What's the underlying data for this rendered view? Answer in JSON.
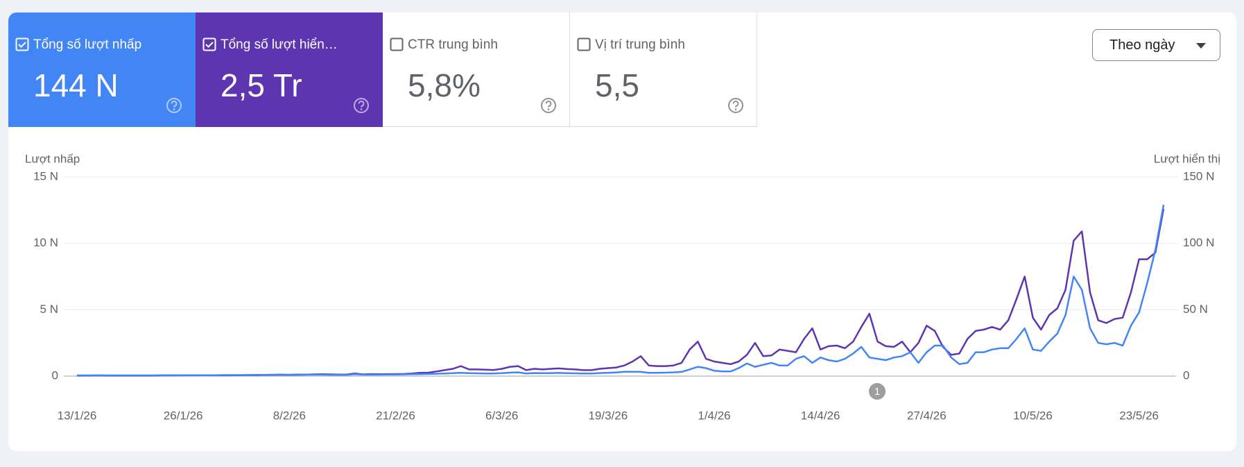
{
  "cards": [
    {
      "label": "Tổng số lượt nhấp",
      "value": "144 N",
      "checked": true,
      "color": "#4285f4"
    },
    {
      "label": "Tổng số lượt hiển…",
      "value": "2,5 Tr",
      "checked": true,
      "color": "#5e35b1"
    },
    {
      "label": "CTR trung bình",
      "value": "5,8%",
      "checked": false,
      "color": "#ffffff"
    },
    {
      "label": "Vị trí trung bình",
      "value": "5,5",
      "checked": false,
      "color": "#ffffff"
    }
  ],
  "period_select": "Theo ngày",
  "chart_data": {
    "type": "line",
    "y_label": "Lượt nhấp",
    "y2_label": "Lượt hiển thị",
    "annotation": "1",
    "grid": true,
    "categories": [
      "13/1/26",
      null,
      null,
      null,
      null,
      null,
      null,
      null,
      null,
      null,
      null,
      null,
      null,
      "26/1/26",
      null,
      null,
      null,
      null,
      null,
      null,
      null,
      null,
      null,
      null,
      null,
      null,
      "8/2/26",
      null,
      null,
      null,
      null,
      null,
      null,
      null,
      null,
      null,
      null,
      null,
      null,
      "21/2/26",
      null,
      null,
      null,
      null,
      null,
      null,
      null,
      null,
      null,
      null,
      null,
      null,
      "6/3/26",
      null,
      null,
      null,
      null,
      null,
      null,
      null,
      null,
      null,
      null,
      null,
      null,
      "19/3/26",
      null,
      null,
      null,
      null,
      null,
      null,
      null,
      null,
      null,
      null,
      null,
      null,
      "1/4/26",
      null,
      null,
      null,
      null,
      null,
      null,
      null,
      null,
      null,
      null,
      null,
      null,
      "14/4/26",
      null,
      null,
      null,
      null,
      null,
      null,
      null,
      null,
      null,
      null,
      null,
      null,
      "27/4/26",
      null,
      null,
      null,
      null,
      null,
      null,
      null,
      null,
      null,
      null,
      null,
      null,
      "10/5/26",
      null,
      null,
      null,
      null,
      null,
      null,
      null,
      null,
      null,
      null,
      null,
      null,
      "23/5/26",
      null,
      null,
      null
    ],
    "series": [
      {
        "color": "#5e35b1",
        "axis": "y2",
        "values": [
          300,
          300,
          400,
          400,
          300,
          300,
          300,
          300,
          300,
          300,
          400,
          500,
          500,
          600,
          600,
          700,
          700,
          600,
          600,
          700,
          700,
          800,
          800,
          900,
          1000,
          1100,
          1000,
          1200,
          1100,
          1300,
          1400,
          1300,
          1200,
          1200,
          2000,
          1300,
          1500,
          1400,
          1500,
          1500,
          1600,
          2000,
          2500,
          2600,
          3500,
          4500,
          5500,
          7500,
          5000,
          5000,
          4800,
          4600,
          5500,
          7000,
          7500,
          4500,
          5500,
          5000,
          5500,
          5800,
          5300,
          5000,
          4500,
          4500,
          5500,
          6000,
          6500,
          8000,
          11000,
          15000,
          8000,
          7500,
          7500,
          8000,
          10000,
          20000,
          26000,
          13000,
          11000,
          10000,
          9000,
          11000,
          16000,
          25000,
          15000,
          15500,
          20000,
          19000,
          18000,
          28000,
          36000,
          20000,
          22500,
          23000,
          21000,
          26000,
          37000,
          47000,
          26000,
          22500,
          22000,
          26000,
          18000,
          25000,
          38000,
          34000,
          22000,
          16000,
          17000,
          28000,
          34000,
          35000,
          37000,
          35000,
          42000,
          58000,
          75000,
          44000,
          35000,
          46000,
          51000,
          65000,
          102000,
          109000,
          63000,
          42000,
          40000,
          43000,
          44000,
          63000,
          88000,
          88000,
          93000,
          126000
        ]
      },
      {
        "color": "#4285f4",
        "values": [
          50,
          50,
          60,
          60,
          50,
          50,
          50,
          50,
          50,
          50,
          60,
          60,
          70,
          70,
          70,
          70,
          70,
          70,
          80,
          80,
          80,
          80,
          90,
          90,
          100,
          100,
          100,
          100,
          110,
          110,
          110,
          100,
          100,
          100,
          140,
          110,
          110,
          110,
          120,
          120,
          130,
          140,
          150,
          160,
          180,
          200,
          220,
          250,
          220,
          210,
          200,
          200,
          220,
          260,
          280,
          200,
          230,
          220,
          230,
          240,
          220,
          210,
          200,
          200,
          230,
          250,
          270,
          330,
          330,
          320,
          250,
          250,
          260,
          280,
          320,
          500,
          700,
          600,
          400,
          350,
          350,
          600,
          950,
          700,
          850,
          1000,
          800,
          800,
          1300,
          1500,
          1000,
          1400,
          1200,
          1100,
          1300,
          1700,
          2200,
          1400,
          1300,
          1200,
          1400,
          1500,
          1800,
          1000,
          1800,
          2300,
          2300,
          1400,
          900,
          1000,
          1800,
          1800,
          2000,
          2100,
          2100,
          2800,
          3600,
          2000,
          1900,
          2600,
          3200,
          4600,
          7500,
          6500,
          3600,
          2500,
          2400,
          2500,
          2300,
          3800,
          4800,
          7000,
          9500,
          12900
        ]
      }
    ],
    "ylim": [
      0,
      15000
    ],
    "yticks": [
      0,
      {
        "value": 5000,
        "label": "5 N"
      },
      {
        "value": 10000,
        "label": "10 N"
      },
      {
        "value": 15000,
        "label": "15 N"
      }
    ],
    "y2lim": [
      0,
      150000
    ],
    "y2ticks": [
      0,
      {
        "value": 50000,
        "label": "50 N"
      },
      {
        "value": 100000,
        "label": "100 N"
      },
      {
        "value": 150000,
        "label": "150 N"
      }
    ]
  }
}
